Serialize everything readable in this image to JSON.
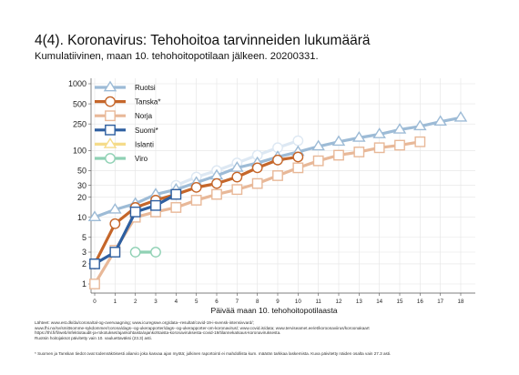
{
  "title": "4(4). Koronavirus: Tehohoitoa tarvinneiden lukumäärä",
  "subtitle": "Kumulatiivinen, maan 10. tehohoitopotilaan jälkeen. 20200331.",
  "chart_data": {
    "type": "line",
    "xlabel": "Päivää maan 10. tehohoitopotilaasta",
    "ylabel": "",
    "xlim": [
      0,
      18
    ],
    "ylim": [
      1,
      1000
    ],
    "y_scale": "log",
    "x_ticks": [
      0,
      1,
      2,
      3,
      4,
      5,
      6,
      7,
      8,
      9,
      10,
      11,
      12,
      13,
      14,
      15,
      16,
      17,
      18
    ],
    "y_ticks": [
      1,
      2,
      3,
      5,
      10,
      20,
      30,
      50,
      100,
      250,
      500,
      1000
    ],
    "legend_position": "top-left",
    "grid": true,
    "series": [
      {
        "name": "Ruotsi",
        "color": "#9dbbd6",
        "marker": "triangle",
        "x": [
          0,
          1,
          2,
          3,
          4,
          5,
          6,
          7,
          8,
          9,
          10,
          11,
          12,
          13,
          14,
          15,
          16,
          17,
          18
        ],
        "values": [
          10,
          13,
          16,
          22,
          26,
          33,
          42,
          55,
          65,
          80,
          95,
          115,
          135,
          155,
          175,
          205,
          230,
          270,
          310
        ]
      },
      {
        "name": "Tanska*",
        "color": "#c5662a",
        "marker": "circle",
        "x": [
          0,
          1,
          2,
          3,
          4,
          5,
          6,
          7,
          8,
          9,
          10
        ],
        "values": [
          2,
          8,
          14,
          18,
          22,
          28,
          32,
          40,
          55,
          72,
          80
        ]
      },
      {
        "name": "Norja",
        "color": "#e8b898",
        "marker": "square",
        "x": [
          0,
          1,
          2,
          3,
          4,
          5,
          6,
          7,
          8,
          9,
          10,
          11,
          12,
          13,
          14,
          15,
          16
        ],
        "values": [
          1,
          3.2,
          10,
          12,
          14,
          18,
          22,
          26,
          32,
          42,
          55,
          70,
          85,
          95,
          110,
          120,
          135
        ]
      },
      {
        "name": "Suomi*",
        "color": "#2e5fa0",
        "marker": "square",
        "x": [
          0,
          1,
          2,
          3,
          4
        ],
        "values": [
          2,
          3,
          12,
          15,
          22
        ]
      },
      {
        "name": "Islanti",
        "color": "#f5dc8a",
        "marker": "triangle",
        "x": [],
        "values": []
      },
      {
        "name": "Viro",
        "color": "#8fd1b4",
        "marker": "circle",
        "x": [
          2,
          3
        ],
        "values": [
          3,
          3
        ]
      },
      {
        "name": "",
        "color": "#dde8f3",
        "marker": "circle",
        "x": [
          4,
          5,
          6,
          7,
          8,
          9,
          10
        ],
        "values": [
          30,
          40,
          50,
          65,
          85,
          110,
          140
        ]
      }
    ]
  },
  "sources": [
    "Lähteet: www.est.dk/da/corona/tal-og-overvaagning; www.icuregswe.org/data--resultat/covid-19-i-svensk-intensivvard/;",
    "www.fhi.no/sv/smittsomme-sykdommer/corona/dags--og-ukerapporter/dags--og-ukerapporter-om-koronavirus/; www.covid.is/data; www.terviseamet.ee/et/koroonaviirus/koroonakaart",
    "https://thl.fi/fi/web/infektiotaudit-ja-rokotukset/ajankohtaista/ajankohtaista-koronaviruksesta-covid-19/tilannekatsaus-koronaviruksesta.",
    "Ruotsin hoitojaksot päivitetty vain 10. vauluettaväksi (23.3) asti."
  ],
  "footnote": "* Suomen ja Tanskan tiedot ovat todennäköisesti aliarvio joka kasvaa ajan myötä; julkinen raportointi ei mahdollista kum. määrän tarkkaa laskemista. Kuva päivitetty näiden osalta vain 27.3 asti."
}
